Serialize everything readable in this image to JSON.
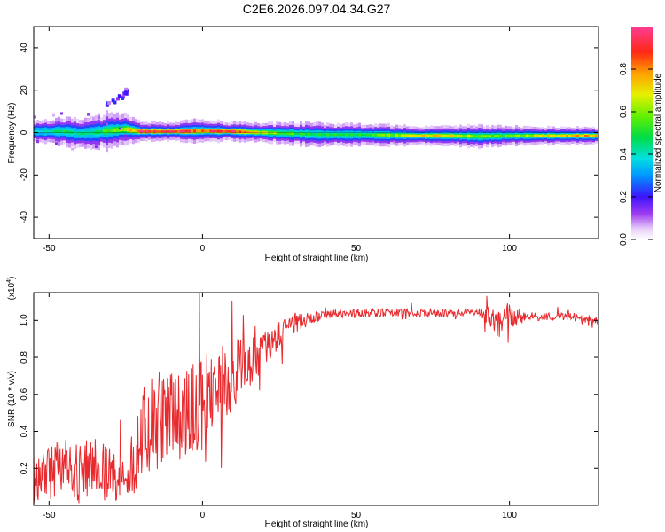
{
  "title": "C2E6.2026.097.04.34.G27",
  "chart_data": [
    {
      "type": "heatmap",
      "name": "spectrogram",
      "xlabel": "Height of straight line (km)",
      "ylabel": "Frequency (Hz)",
      "xlim": [
        -55,
        129
      ],
      "ylim": [
        -50,
        50
      ],
      "xticks": [
        -50,
        0,
        50,
        100
      ],
      "yticks": [
        -40,
        -20,
        0,
        20,
        40
      ],
      "ytick_labels": [
        "-40",
        "-20",
        "0",
        "20",
        "40"
      ],
      "colorbar": {
        "label": "Normalized spectral amplitude",
        "range": [
          0,
          1
        ],
        "ticks": [
          0.0,
          0.2,
          0.4,
          0.6,
          0.8
        ],
        "tick_labels": [
          "0.0",
          "0.2",
          "0.4",
          "0.6",
          "0.8"
        ]
      },
      "ridge": {
        "x": [
          -55,
          -45,
          -40,
          -35,
          -30,
          -25,
          -20,
          -10,
          0,
          10,
          20,
          30,
          40,
          50,
          60,
          70,
          80,
          90,
          100,
          110,
          120,
          129
        ],
        "center_freq": [
          0.5,
          0.5,
          -0.5,
          0.0,
          1.0,
          1.5,
          0.5,
          0.5,
          0.8,
          0.5,
          0.0,
          -0.5,
          -1.0,
          -1.0,
          -1.2,
          -1.5,
          -1.5,
          -1.8,
          -1.5,
          -1.5,
          -1.5,
          -1.5
        ],
        "half_width": [
          3,
          3.5,
          4,
          4,
          5,
          4,
          2.5,
          2.5,
          3,
          2.5,
          2.5,
          3,
          3,
          3,
          2.8,
          2.5,
          2.5,
          3,
          2.5,
          2.3,
          2.3,
          2.3
        ],
        "peak_amplitude": [
          0.4,
          0.5,
          0.45,
          0.5,
          0.6,
          0.7,
          0.95,
          0.95,
          0.9,
          0.95,
          0.7,
          0.55,
          0.5,
          0.5,
          0.6,
          0.75,
          0.75,
          0.6,
          0.6,
          0.7,
          0.8,
          0.8
        ]
      },
      "secondary_blob": {
        "x": [
          -32,
          -24
        ],
        "freq": [
          14,
          21
        ],
        "amplitude": 0.2
      }
    },
    {
      "type": "line",
      "name": "snr",
      "xlabel": "Height of straight line (km)",
      "ylabel": "SNR (10 * v/v)",
      "multiplier_label": "(x10",
      "multiplier_exponent": "4",
      "xlim": [
        -55,
        129
      ],
      "ylim": [
        0.0,
        1.15
      ],
      "xticks": [
        -50,
        0,
        50,
        100
      ],
      "yticks": [
        0.2,
        0.4,
        0.6,
        0.8,
        1.0
      ],
      "ytick_labels": [
        "0.2",
        "0.4",
        "0.6",
        "0.8",
        "1.0"
      ],
      "color": "#e8292d",
      "trend": {
        "x": [
          -55,
          -45,
          -40,
          -35,
          -30,
          -25,
          -20,
          -15,
          -10,
          -5,
          0,
          5,
          10,
          15,
          20,
          25,
          30,
          35,
          40,
          50,
          60,
          70,
          80,
          90,
          95,
          97,
          100,
          110,
          120,
          129
        ],
        "y": [
          0.15,
          0.2,
          0.18,
          0.22,
          0.18,
          0.15,
          0.35,
          0.45,
          0.5,
          0.5,
          0.55,
          0.65,
          0.7,
          0.78,
          0.85,
          0.92,
          0.98,
          1.01,
          1.03,
          1.04,
          1.04,
          1.04,
          1.04,
          1.05,
          1.0,
          0.97,
          1.02,
          1.02,
          1.02,
          1.0
        ]
      },
      "noise_amplitude": {
        "x": [
          -55,
          -30,
          -25,
          -20,
          0,
          10,
          20,
          30,
          40,
          90,
          95,
          98,
          105,
          129
        ],
        "y": [
          0.16,
          0.16,
          0.1,
          0.28,
          0.25,
          0.2,
          0.1,
          0.05,
          0.025,
          0.02,
          0.07,
          0.1,
          0.025,
          0.02
        ]
      }
    }
  ]
}
